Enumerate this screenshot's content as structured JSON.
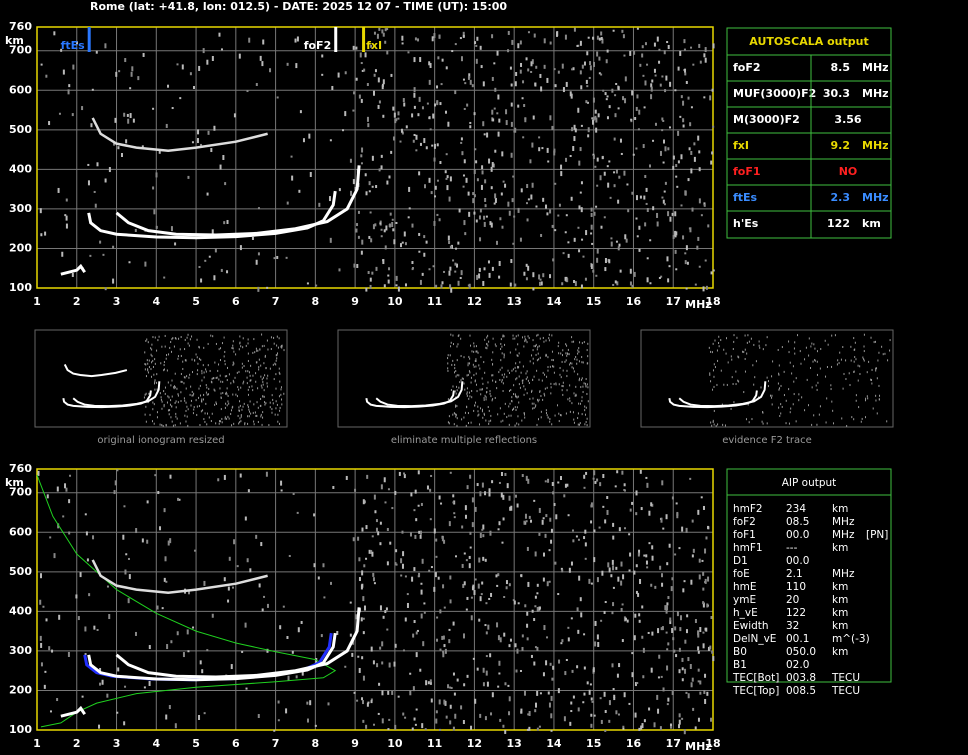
{
  "header": {
    "title": "Rome (lat: +41.8, lon: 012.5) - DATE: 2025 12 07 - TIME (UT): 15:00"
  },
  "axes": {
    "y_unit": "km",
    "x_unit": "MHz",
    "yticks": [
      100,
      200,
      300,
      400,
      500,
      600,
      700,
      760
    ],
    "xticks": [
      1,
      2,
      3,
      4,
      5,
      6,
      7,
      8,
      9,
      10,
      11,
      12,
      13,
      14,
      15,
      16,
      17,
      18
    ]
  },
  "markers": [
    "ftEs",
    "foF2",
    "fxI"
  ],
  "thumbnails": [
    "original ionogram resized",
    "eliminate multiple reflections",
    "evidence F2 trace"
  ],
  "autoscala": {
    "title": "AUTOSCALA output",
    "rows": [
      [
        "foF2",
        "8.5",
        "MHz"
      ],
      [
        "MUF(3000)F2",
        "30.3",
        "MHz"
      ],
      [
        "M(3000)F2",
        "3.56"
      ],
      [
        "fxI",
        "9.2",
        "MHz"
      ],
      [
        "foF1",
        "NO"
      ],
      [
        "ftEs",
        "2.3",
        "MHz"
      ],
      [
        "h'Es",
        "122",
        "km"
      ]
    ]
  },
  "aip": {
    "title": "AIP output",
    "rows": [
      [
        "hmF2",
        "234",
        "km"
      ],
      [
        "foF2",
        "08.5",
        "MHz"
      ],
      [
        "foF1",
        "00.0",
        "MHz",
        "[PN]"
      ],
      [
        "hmF1",
        "---",
        "km"
      ],
      [
        "D1",
        "00.0"
      ],
      [
        "foE",
        "2.1",
        "MHz"
      ],
      [
        "hmE",
        "110",
        "km"
      ],
      [
        "ymE",
        "20",
        "km"
      ],
      [
        "h_vE",
        "122",
        "km"
      ],
      [
        "Ewidth",
        "32",
        "km"
      ],
      [
        "DelN_vE",
        "00.1",
        "m^(-3)"
      ],
      [
        "B0",
        "050.0",
        "km"
      ],
      [
        "B1",
        "02.0"
      ],
      [
        "TEC[Bot]",
        "003.8",
        "TECU"
      ],
      [
        "TEC[Top]",
        "008.5",
        "TECU"
      ]
    ]
  }
}
